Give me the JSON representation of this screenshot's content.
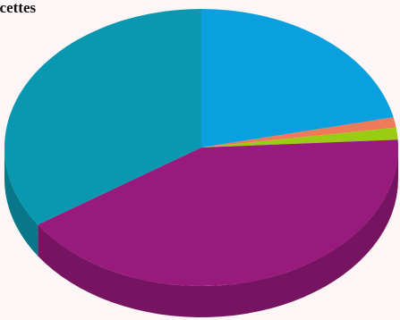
{
  "chart_data": {
    "type": "pie",
    "title": "ecettes",
    "style": "3d",
    "slices": [
      {
        "value": 21.5,
        "color": "#0aa0e0"
      },
      {
        "value": 1.2,
        "color": "#ee7a5a"
      },
      {
        "value": 1.4,
        "color": "#9acc14"
      },
      {
        "value": 41.5,
        "color": "#981a7c"
      },
      {
        "value": 34.4,
        "color": "#0a98b0"
      }
    ]
  }
}
